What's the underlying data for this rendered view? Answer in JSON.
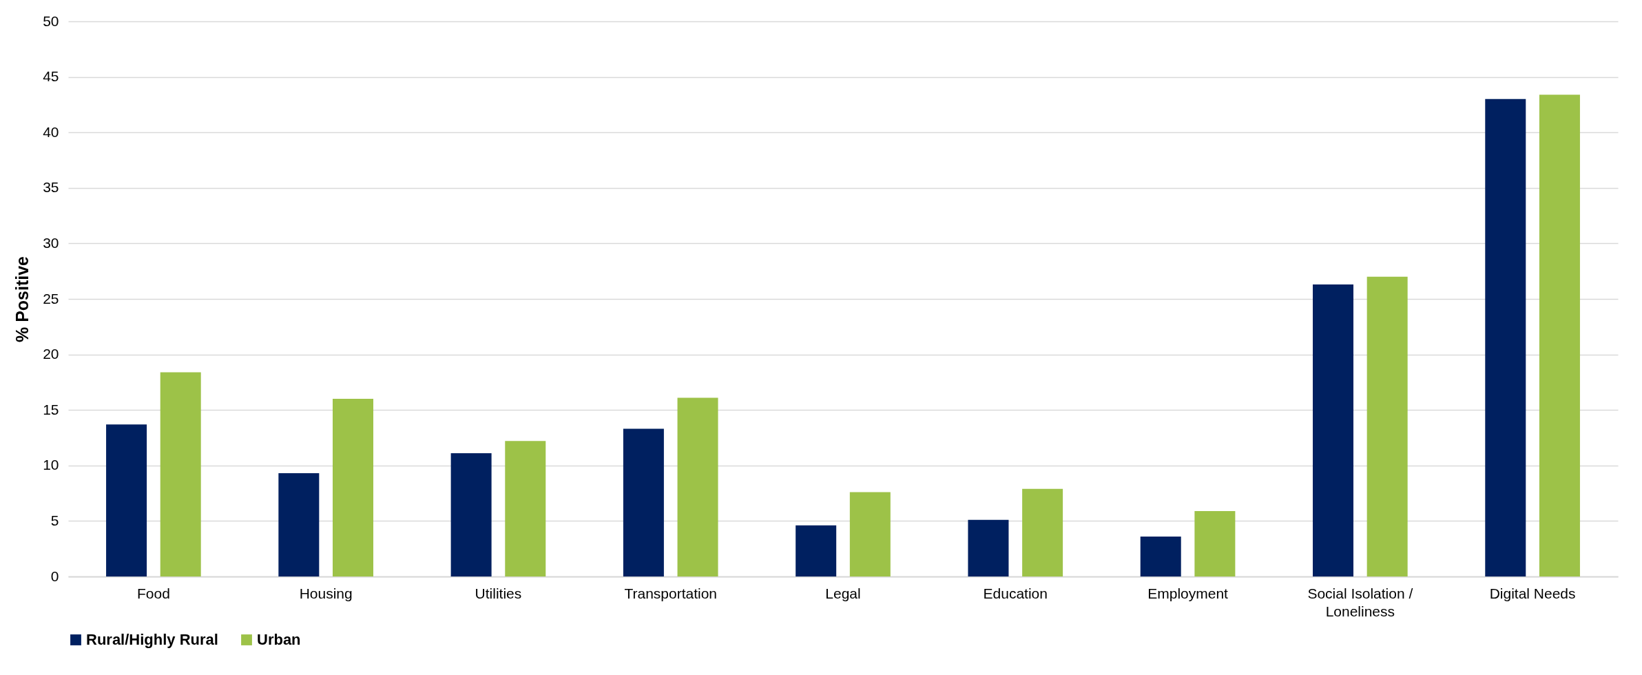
{
  "chart_data": {
    "type": "bar",
    "ylabel": "% Positive",
    "categories": [
      "Food",
      "Housing",
      "Utilities",
      "Transportation",
      "Legal",
      "Education",
      "Employment",
      "Social Isolation / Loneliness",
      "Digital Needs"
    ],
    "series": [
      {
        "name": "Rural/Highly Rural",
        "color": "#002060",
        "values": [
          13.7,
          9.3,
          11.1,
          13.3,
          4.6,
          5.1,
          3.6,
          26.3,
          43.0
        ]
      },
      {
        "name": "Urban",
        "color": "#9dc248",
        "values": [
          18.4,
          16.0,
          12.2,
          16.1,
          7.6,
          7.9,
          5.9,
          27.0,
          43.4
        ]
      }
    ],
    "ylim": [
      0,
      50
    ],
    "yticks": [
      0,
      5,
      10,
      15,
      20,
      25,
      30,
      35,
      40,
      45,
      50
    ],
    "grid": "y",
    "legend": "bottom"
  }
}
